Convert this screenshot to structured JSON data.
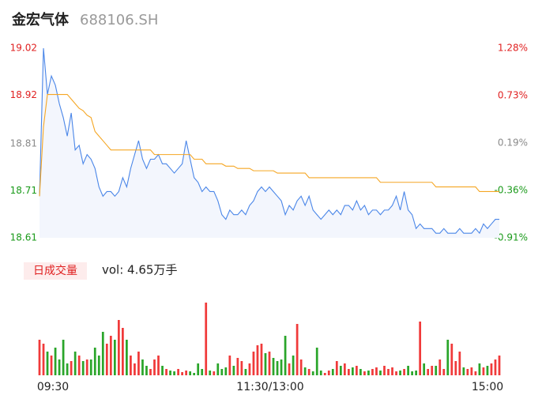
{
  "header": {
    "title": "金宏气体",
    "code": "688106.SH"
  },
  "chart_data": {
    "type": "line",
    "ylim": [
      18.61,
      19.02
    ],
    "yticks": [
      19.02,
      {
        "value": 18.918,
        "label": "18.92"
      },
      {
        "value": 18.813,
        "label": "18.81"
      },
      {
        "value": 18.712,
        "label": "18.71"
      },
      18.61
    ],
    "ytick_colors": [
      "#e02020",
      "#e02020",
      "#8a8a8a",
      "#1a9a1a",
      "#1a9a1a"
    ],
    "y2lim": [
      -0.91,
      1.28
    ],
    "y2ticks": [
      {
        "value": 1.28,
        "label": "1.28%"
      },
      {
        "value": 0.7325,
        "label": "0.73%"
      },
      {
        "value": 0.185,
        "label": "0.19%"
      },
      {
        "value": -0.3625,
        "label": "-0.36%"
      },
      {
        "value": -0.91,
        "label": "-0.91%"
      }
    ],
    "x_labels": [
      "09:30",
      "11:30/13:00",
      "15:00"
    ],
    "series": [
      {
        "color": "#4a86e8",
        "fill": "#f3f6fd",
        "values": [
          18.7,
          19.02,
          18.92,
          18.96,
          18.94,
          18.9,
          18.87,
          18.83,
          18.88,
          18.8,
          18.81,
          18.77,
          18.79,
          18.78,
          18.76,
          18.72,
          18.7,
          18.71,
          18.71,
          18.7,
          18.71,
          18.74,
          18.72,
          18.76,
          18.79,
          18.82,
          18.78,
          18.76,
          18.78,
          18.78,
          18.79,
          18.77,
          18.77,
          18.76,
          18.75,
          18.76,
          18.77,
          18.82,
          18.78,
          18.74,
          18.73,
          18.71,
          18.72,
          18.71,
          18.71,
          18.69,
          18.66,
          18.65,
          18.67,
          18.66,
          18.66,
          18.67,
          18.66,
          18.68,
          18.69,
          18.71,
          18.72,
          18.71,
          18.72,
          18.71,
          18.7,
          18.69,
          18.66,
          18.68,
          18.67,
          18.69,
          18.7,
          18.68,
          18.7,
          18.67,
          18.66,
          18.65,
          18.66,
          18.67,
          18.66,
          18.67,
          18.66,
          18.68,
          18.68,
          18.67,
          18.69,
          18.67,
          18.68,
          18.66,
          18.67,
          18.67,
          18.66,
          18.67,
          18.67,
          18.68,
          18.7,
          18.67,
          18.71,
          18.67,
          18.66,
          18.63,
          18.64,
          18.63,
          18.63,
          18.63,
          18.62,
          18.62,
          18.63,
          18.62,
          18.62,
          18.62,
          18.63,
          18.62,
          18.62,
          18.62,
          18.63,
          18.62,
          18.64,
          18.63,
          18.64,
          18.65,
          18.65
        ]
      },
      {
        "color": "#f5a623",
        "values": [
          18.7,
          18.85,
          18.92,
          18.92,
          18.92,
          18.92,
          18.92,
          18.92,
          18.91,
          18.9,
          18.89,
          18.885,
          18.875,
          18.87,
          18.84,
          18.83,
          18.82,
          18.81,
          18.8,
          18.8,
          18.8,
          18.8,
          18.8,
          18.8,
          18.8,
          18.8,
          18.8,
          18.8,
          18.8,
          18.79,
          18.79,
          18.79,
          18.79,
          18.79,
          18.79,
          18.79,
          18.79,
          18.79,
          18.79,
          18.78,
          18.78,
          18.78,
          18.77,
          18.77,
          18.77,
          18.77,
          18.77,
          18.765,
          18.765,
          18.765,
          18.76,
          18.76,
          18.76,
          18.76,
          18.755,
          18.755,
          18.755,
          18.755,
          18.755,
          18.755,
          18.75,
          18.75,
          18.75,
          18.75,
          18.75,
          18.75,
          18.75,
          18.75,
          18.74,
          18.74,
          18.74,
          18.74,
          18.74,
          18.74,
          18.74,
          18.74,
          18.74,
          18.74,
          18.74,
          18.74,
          18.74,
          18.74,
          18.74,
          18.74,
          18.74,
          18.74,
          18.73,
          18.73,
          18.73,
          18.73,
          18.73,
          18.73,
          18.73,
          18.73,
          18.73,
          18.73,
          18.73,
          18.73,
          18.73,
          18.73,
          18.72,
          18.72,
          18.72,
          18.72,
          18.72,
          18.72,
          18.72,
          18.72,
          18.72,
          18.72,
          18.72,
          18.71,
          18.71,
          18.71,
          18.71,
          18.71,
          18.71
        ]
      }
    ],
    "volume": {
      "label": "日成交量",
      "text": "vol: 4.65万手",
      "ylim": [
        0,
        100
      ],
      "up_color": "#f03a3a",
      "down_color": "#2aa52a",
      "values": [
        45,
        40,
        30,
        25,
        35,
        20,
        45,
        15,
        18,
        30,
        25,
        18,
        20,
        20,
        35,
        25,
        55,
        40,
        50,
        45,
        70,
        60,
        45,
        25,
        15,
        30,
        20,
        12,
        8,
        20,
        25,
        12,
        8,
        6,
        5,
        8,
        4,
        6,
        5,
        3,
        15,
        8,
        92,
        6,
        5,
        15,
        8,
        10,
        25,
        12,
        22,
        18,
        8,
        15,
        30,
        38,
        40,
        28,
        30,
        22,
        18,
        20,
        50,
        15,
        25,
        65,
        20,
        10,
        8,
        5,
        35,
        6,
        3,
        6,
        8,
        18,
        12,
        15,
        8,
        10,
        12,
        8,
        5,
        6,
        8,
        10,
        6,
        12,
        8,
        10,
        5,
        6,
        8,
        12,
        5,
        6,
        68,
        15,
        8,
        12,
        12,
        20,
        8,
        45,
        40,
        18,
        30,
        10,
        8,
        10,
        5,
        15,
        10,
        12,
        15,
        20,
        25
      ]
    }
  }
}
